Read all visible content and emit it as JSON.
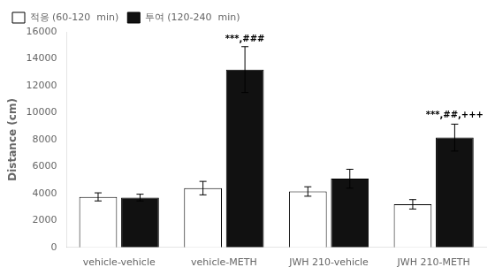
{
  "chart_data": {
    "type": "bar",
    "categories": [
      "vehicle-vehicle",
      "vehicle-METH",
      "JWH 210-vehicle",
      "JWH 210-METH"
    ],
    "series": [
      {
        "name": "적응 (60-120  min)",
        "color": "#ffffff",
        "values": [
          3750,
          4400,
          4150,
          3200
        ],
        "errors": [
          300,
          500,
          350,
          350
        ]
      },
      {
        "name": "투여 (120-240  min)",
        "color": "#111111",
        "values": [
          3700,
          13200,
          5100,
          8150
        ],
        "errors": [
          250,
          1700,
          700,
          1000
        ]
      }
    ],
    "y_label": "Distance (cm)",
    "ylim": [
      0,
      16000
    ],
    "yticks": [
      0,
      2000,
      4000,
      6000,
      8000,
      10000,
      12000,
      14000,
      16000
    ],
    "annotations": [
      {
        "text": "***,###",
        "category": "vehicle-METH",
        "series": "투여 (120-240  min)",
        "y": 15100
      },
      {
        "text": "***,##,+++",
        "category": "JWH 210-METH",
        "series": "투여 (120-240  min)",
        "y": 9500
      }
    ],
    "legend": "upper left",
    "grid": false
  }
}
